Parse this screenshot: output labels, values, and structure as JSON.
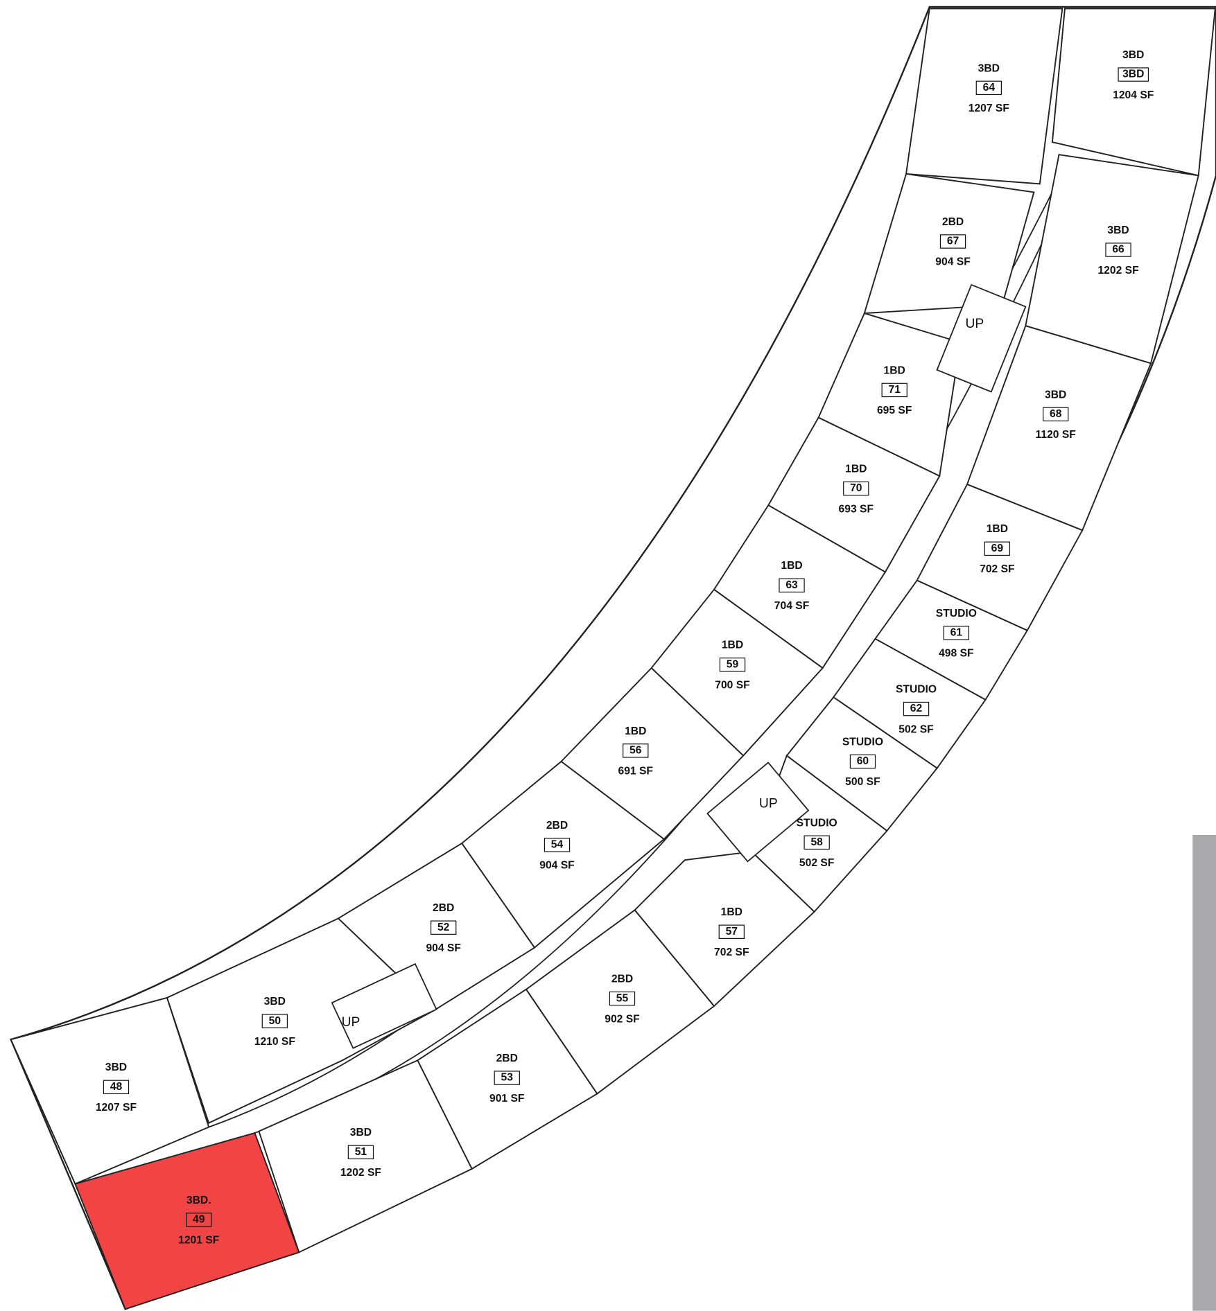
{
  "selected_color": "#f24444",
  "units": [
    {
      "type": "3BD",
      "number": "64",
      "area": "1207 SF"
    },
    {
      "type": "3BD",
      "number": "3BD",
      "area": "1204 SF"
    },
    {
      "type": "2BD",
      "number": "67",
      "area": "904 SF"
    },
    {
      "type": "3BD",
      "number": "66",
      "area": "1202 SF"
    },
    {
      "type": "1BD",
      "number": "71",
      "area": "695 SF"
    },
    {
      "type": "3BD",
      "number": "68",
      "area": "1120 SF"
    },
    {
      "type": "1BD",
      "number": "70",
      "area": "693 SF"
    },
    {
      "type": "1BD",
      "number": "69",
      "area": "702 SF"
    },
    {
      "type": "1BD",
      "number": "63",
      "area": "704 SF"
    },
    {
      "type": "STUDIO",
      "number": "61",
      "area": "498 SF"
    },
    {
      "type": "1BD",
      "number": "59",
      "area": "700 SF"
    },
    {
      "type": "STUDIO",
      "number": "62",
      "area": "502 SF"
    },
    {
      "type": "1BD",
      "number": "56",
      "area": "691 SF"
    },
    {
      "type": "STUDIO",
      "number": "60",
      "area": "500 SF"
    },
    {
      "type": "STUDIO",
      "number": "58",
      "area": "502 SF"
    },
    {
      "type": "2BD",
      "number": "54",
      "area": "904 SF"
    },
    {
      "type": "1BD",
      "number": "57",
      "area": "702 SF"
    },
    {
      "type": "2BD",
      "number": "52",
      "area": "904 SF"
    },
    {
      "type": "2BD",
      "number": "55",
      "area": "902 SF"
    },
    {
      "type": "3BD",
      "number": "50",
      "area": "1210 SF"
    },
    {
      "type": "2BD",
      "number": "53",
      "area": "901 SF"
    },
    {
      "type": "3BD",
      "number": "48",
      "area": "1207 SF"
    },
    {
      "type": "3BD",
      "number": "51",
      "area": "1202 SF"
    },
    {
      "type": "3BD.",
      "number": "49",
      "area": "1201 SF",
      "selected": true
    }
  ],
  "stairs": [
    "UP",
    "UP",
    "UP"
  ]
}
